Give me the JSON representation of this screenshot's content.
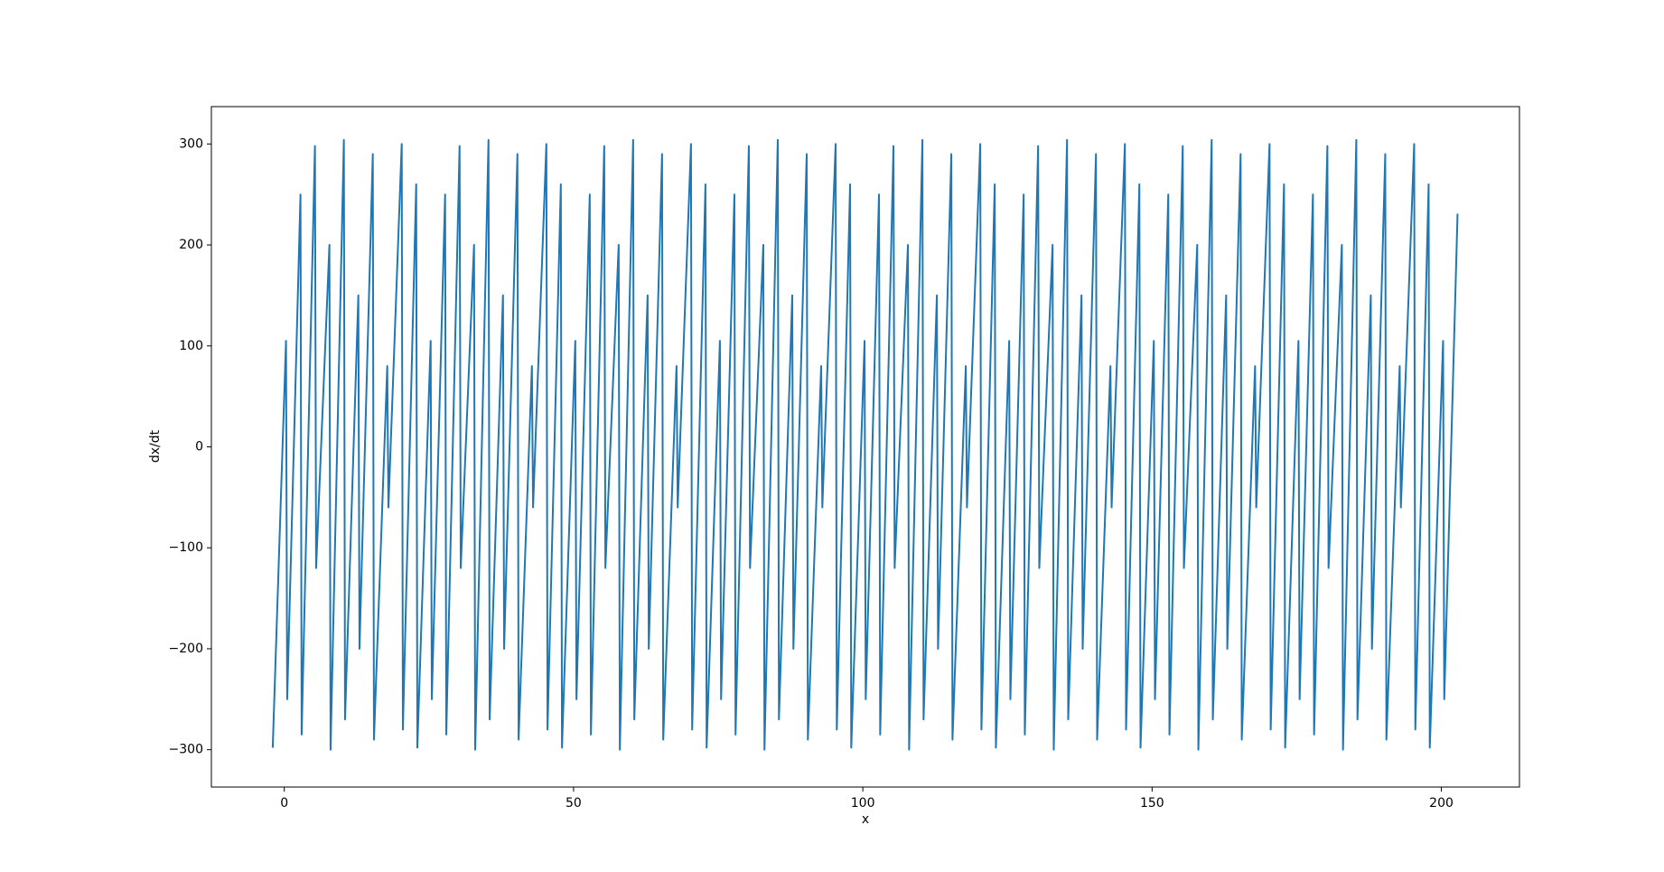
{
  "chart_data": {
    "type": "line",
    "xlabel": "x",
    "ylabel": "dx/dt",
    "xlim": [
      -12.6,
      213.5
    ],
    "xticks": [
      0,
      50,
      100,
      150,
      200
    ],
    "ylim": [
      -337,
      337
    ],
    "yticks": [
      {
        "value": -300,
        "label": "−300"
      },
      {
        "value": -200,
        "label": "−200"
      },
      {
        "value": -100,
        "label": "−100"
      },
      0,
      100,
      200,
      300
    ],
    "series": [
      {
        "color": "#1f77b4",
        "x": [
          -2,
          0.3,
          0.5,
          2.8,
          3,
          5.3,
          5.5,
          7.8,
          8,
          10.3,
          10.5,
          12.8,
          13,
          15.3,
          15.5,
          17.8,
          18,
          20.3,
          20.5,
          22.8,
          23,
          25.3,
          25.5,
          27.8,
          28,
          30.3,
          30.5,
          32.8,
          33,
          35.3,
          35.5,
          37.8,
          38,
          40.3,
          40.5,
          42.8,
          43,
          45.3,
          45.5,
          47.8,
          48,
          50.3,
          50.5,
          52.8,
          53,
          55.3,
          55.5,
          57.8,
          58,
          60.3,
          60.5,
          62.8,
          63,
          65.3,
          65.5,
          67.8,
          68,
          70.3,
          70.5,
          72.8,
          73,
          75.3,
          75.5,
          77.8,
          78,
          80.3,
          80.5,
          82.8,
          83,
          85.3,
          85.5,
          87.8,
          88,
          90.3,
          90.5,
          92.8,
          93,
          95.3,
          95.5,
          97.8,
          98,
          100.3,
          100.5,
          102.8,
          103,
          105.3,
          105.5,
          107.8,
          108,
          110.3,
          110.5,
          112.8,
          113,
          115.3,
          115.5,
          117.8,
          118,
          120.3,
          120.5,
          122.8,
          123,
          125.3,
          125.5,
          127.8,
          128,
          130.3,
          130.5,
          132.8,
          133,
          135.3,
          135.5,
          137.8,
          138,
          140.3,
          140.5,
          142.8,
          143,
          145.3,
          145.5,
          147.8,
          148,
          150.3,
          150.5,
          152.8,
          153,
          155.3,
          155.5,
          157.8,
          158,
          160.3,
          160.5,
          162.8,
          163,
          165.3,
          165.5,
          167.8,
          168,
          170.3,
          170.5,
          172.8,
          173,
          175.3,
          175.5,
          177.8,
          178,
          180.3,
          180.5,
          182.8,
          183,
          185.3,
          185.5,
          187.8,
          188,
          190.3,
          190.5,
          192.8,
          193,
          195.3,
          195.5,
          197.8,
          198,
          200.3,
          200.5,
          202.8
        ],
        "values": [
          -298,
          105,
          -250,
          250,
          -285,
          298,
          -120,
          200,
          -300,
          304,
          -270,
          150,
          -200,
          290,
          -290,
          80,
          -60,
          300,
          -280,
          260,
          -298,
          105,
          -250,
          250,
          -285,
          298,
          -120,
          200,
          -300,
          304,
          -270,
          150,
          -200,
          290,
          -290,
          80,
          -60,
          300,
          -280,
          260,
          -298,
          105,
          -250,
          250,
          -285,
          298,
          -120,
          200,
          -300,
          304,
          -270,
          150,
          -200,
          290,
          -290,
          80,
          -60,
          300,
          -280,
          260,
          -298,
          105,
          -250,
          250,
          -285,
          298,
          -120,
          200,
          -300,
          304,
          -270,
          150,
          -200,
          290,
          -290,
          80,
          -60,
          300,
          -280,
          260,
          -298,
          105,
          -250,
          250,
          -285,
          298,
          -120,
          200,
          -300,
          304,
          -270,
          150,
          -200,
          290,
          -290,
          80,
          -60,
          300,
          -280,
          260,
          -298,
          105,
          -250,
          250,
          -285,
          298,
          -120,
          200,
          -300,
          304,
          -270,
          150,
          -200,
          290,
          -290,
          80,
          -60,
          300,
          -280,
          260,
          -298,
          105,
          -250,
          250,
          -285,
          298,
          -120,
          200,
          -300,
          304,
          -270,
          150,
          -200,
          290,
          -290,
          80,
          -60,
          300,
          -280,
          260,
          -298,
          105,
          -250,
          250,
          -285,
          298,
          -120,
          200,
          -300,
          304,
          -270,
          150,
          -200,
          290,
          -290,
          80,
          -60,
          300,
          -280,
          260,
          -298,
          105,
          -250,
          231
        ]
      }
    ]
  }
}
